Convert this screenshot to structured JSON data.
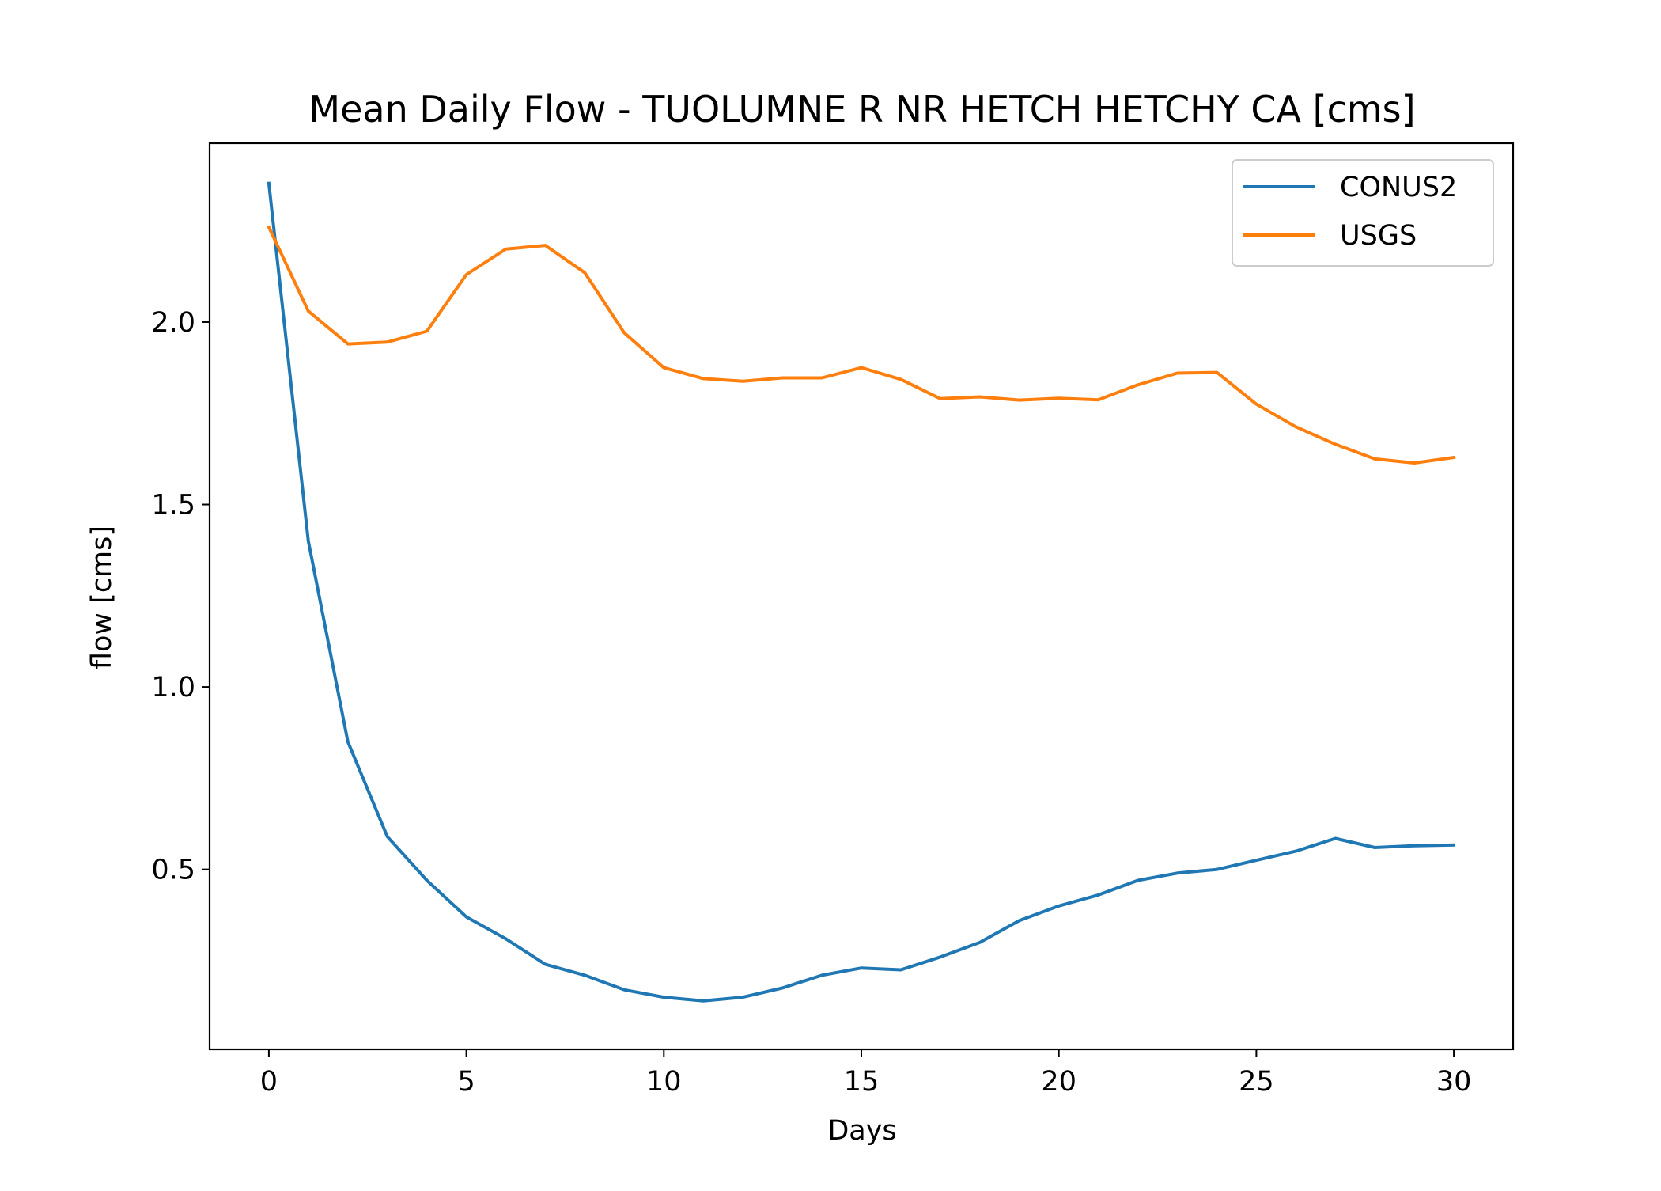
{
  "chart_data": {
    "type": "line",
    "title": "Mean Daily Flow - TUOLUMNE R NR HETCH HETCHY CA [cms]",
    "xlabel": "Days",
    "ylabel": "flow [cms]",
    "xlim": [
      -1.5,
      31.5
    ],
    "ylim": [
      0.007,
      2.49
    ],
    "xticks": [
      0,
      5,
      10,
      15,
      20,
      25,
      30
    ],
    "xtick_labels": [
      "0",
      "5",
      "10",
      "15",
      "20",
      "25",
      "30"
    ],
    "yticks": [
      0.5,
      1.0,
      1.5,
      2.0
    ],
    "ytick_labels": [
      "0.5",
      "1.0",
      "1.5",
      "2.0"
    ],
    "grid": false,
    "legend_position": "top-right",
    "x": [
      0,
      1,
      2,
      3,
      4,
      5,
      6,
      7,
      8,
      9,
      10,
      11,
      12,
      13,
      14,
      15,
      16,
      17,
      18,
      19,
      20,
      21,
      22,
      23,
      24,
      25,
      26,
      27,
      28,
      29,
      30
    ],
    "series": [
      {
        "name": "CONUS2",
        "color": "#1f77b4",
        "values": [
          2.38,
          1.4,
          0.85,
          0.59,
          0.47,
          0.37,
          0.31,
          0.24,
          0.21,
          0.17,
          0.15,
          0.14,
          0.15,
          0.175,
          0.21,
          0.23,
          0.225,
          0.26,
          0.3,
          0.36,
          0.4,
          0.43,
          0.47,
          0.49,
          0.5,
          0.525,
          0.55,
          0.585,
          0.56,
          0.565,
          0.567
        ]
      },
      {
        "name": "USGS",
        "color": "#ff7f0e",
        "values": [
          2.26,
          2.03,
          1.94,
          1.945,
          1.975,
          2.13,
          2.2,
          2.21,
          2.135,
          1.97,
          1.875,
          1.845,
          1.838,
          1.847,
          1.847,
          1.875,
          1.843,
          1.79,
          1.795,
          1.786,
          1.791,
          1.787,
          1.828,
          1.86,
          1.862,
          1.775,
          1.713,
          1.665,
          1.625,
          1.614,
          1.629
        ]
      }
    ]
  }
}
